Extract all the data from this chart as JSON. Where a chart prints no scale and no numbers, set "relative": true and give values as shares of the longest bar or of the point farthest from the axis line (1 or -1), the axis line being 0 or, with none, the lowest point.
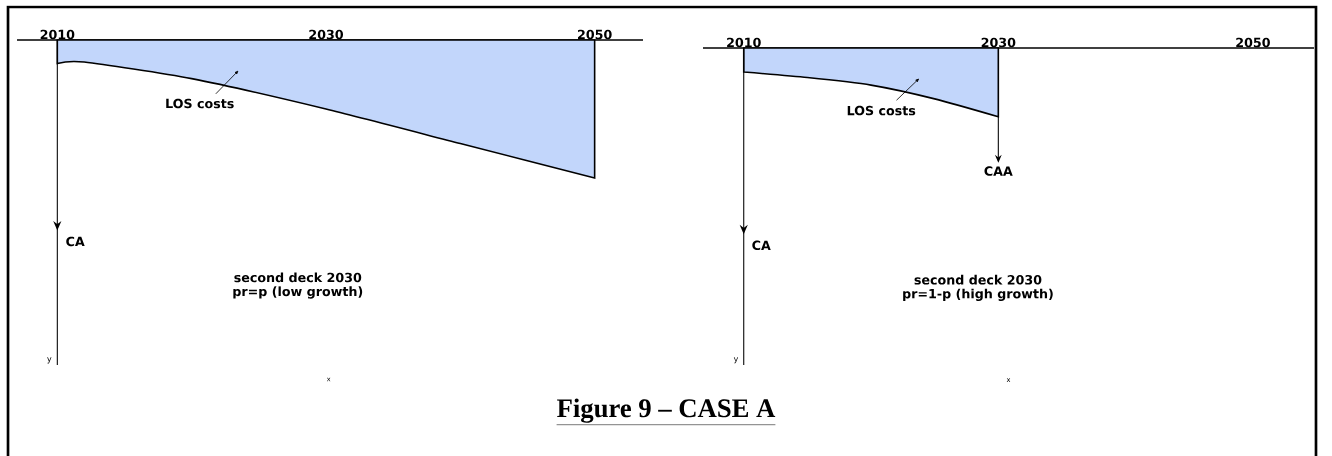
{
  "chart_data": [
    {
      "type": "area",
      "title": "Figure 9 – CASE A",
      "xlabel": "x",
      "relative": true,
      "color": "#c2d6fb",
      "x": [
        2010,
        2012,
        2020,
        2030,
        2040,
        2050
      ],
      "values": [
        -0.17,
        -0.16,
        -0.28,
        -0.5,
        -0.75,
        -1
      ],
      "xlim": [
        2007,
        2053.6
      ],
      "xticks": [
        2010,
        2030,
        2050
      ],
      "ref_lines": [
        {
          "axis": "x",
          "value": 2010,
          "label": "CA"
        }
      ],
      "annotations": [
        "LOS costs",
        "second deck 2030",
        "pr=p (low growth)",
        "y"
      ]
    },
    {
      "type": "area",
      "xlabel": "x",
      "relative": true,
      "color": "#c2d6fb",
      "x": [
        2010,
        2015,
        2020,
        2025,
        2030
      ],
      "values": [
        -0.35,
        -0.43,
        -0.54,
        -0.74,
        -1
      ],
      "xlim": [
        2006.8,
        2054.8
      ],
      "xticks": [
        2010,
        2030,
        2050
      ],
      "ref_lines": [
        {
          "axis": "x",
          "value": 2010,
          "label": "CA"
        }
      ],
      "annotations": [
        "LOS costs",
        "CAA",
        "second deck 2030",
        "pr=1-p (high growth)",
        "y"
      ]
    }
  ]
}
